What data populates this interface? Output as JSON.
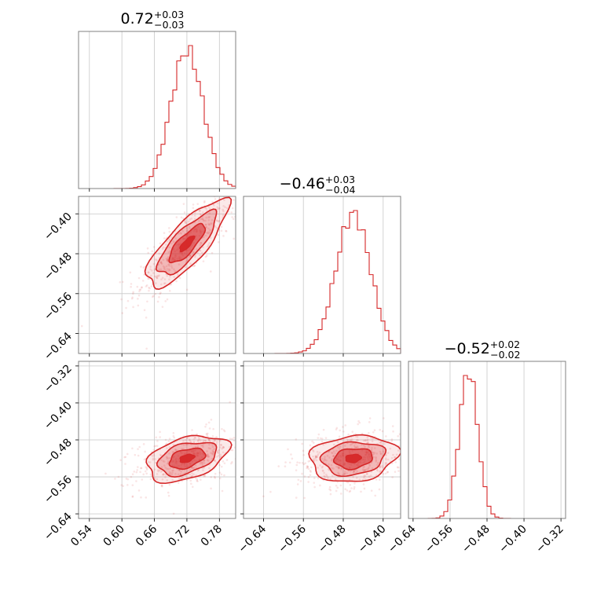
{
  "chart_data": {
    "type": "corner",
    "color": "#d62728",
    "parameters": [
      {
        "range": [
          0.52,
          0.81
        ],
        "ticks": [
          0.54,
          0.6,
          0.66,
          0.72,
          0.78
        ],
        "tick_labels": [
          "0.54",
          "0.60",
          "0.66",
          "0.72",
          "0.78"
        ],
        "median": 0.72,
        "median_label": "0.72",
        "plus": "+0.03",
        "minus": "−0.03",
        "sigma": 0.03
      },
      {
        "range": [
          -0.68,
          -0.365
        ],
        "ticks": [
          -0.64,
          -0.56,
          -0.48,
          -0.4
        ],
        "tick_labels": [
          "−0.64",
          "−0.56",
          "−0.48",
          "−0.40"
        ],
        "median": -0.46,
        "median_label": "−0.46",
        "plus": "+0.03",
        "minus": "−0.04",
        "sigma": 0.035
      },
      {
        "range": [
          -0.65,
          -0.31
        ],
        "ticks": [
          -0.64,
          -0.56,
          -0.48,
          -0.4,
          -0.32
        ],
        "tick_labels": [
          "−0.64",
          "−0.56",
          "−0.48",
          "−0.40",
          "−0.32"
        ],
        "median": -0.52,
        "median_label": "−0.52",
        "plus": "+0.02",
        "minus": "−0.02",
        "sigma": 0.02
      }
    ],
    "correlations": {
      "1_0": 0.8,
      "2_0": 0.4,
      "2_1": 0.15
    },
    "grid": true
  }
}
